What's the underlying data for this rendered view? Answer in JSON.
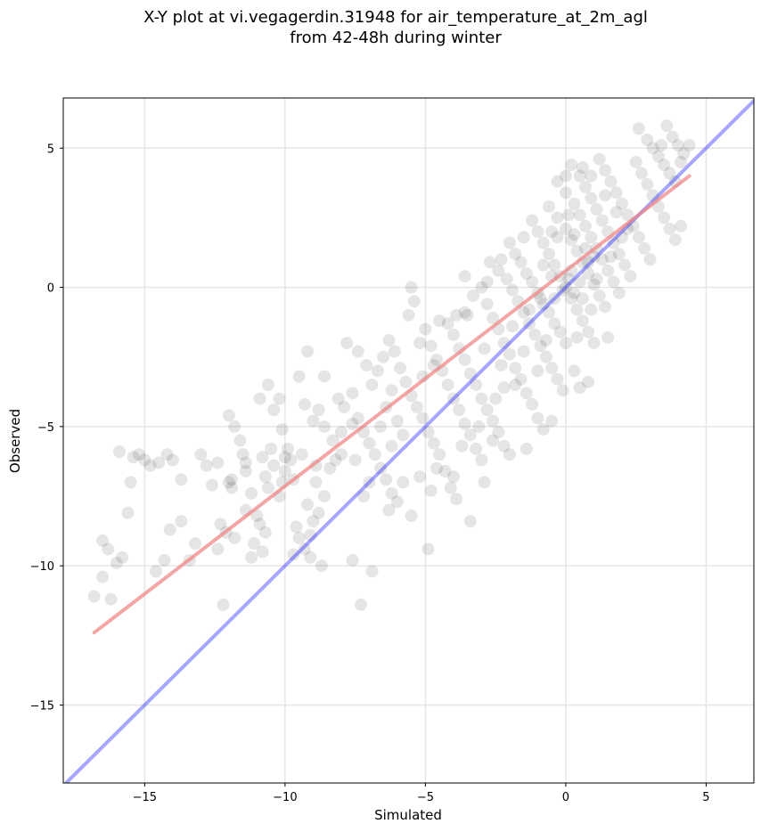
{
  "chart_data": {
    "type": "scatter",
    "title_line1": "X-Y plot at vi.vegagerdin.31948 for air_temperature_at_2m_agl",
    "title_line2": "from 42-48h during winter",
    "xlabel": "Simulated",
    "ylabel": "Observed",
    "xlim": [
      -17.9,
      6.7
    ],
    "ylim": [
      -17.8,
      6.8
    ],
    "xticks": [
      -15,
      -10,
      -5,
      0,
      5
    ],
    "yticks": [
      -15,
      -10,
      -5,
      0,
      5
    ],
    "xtick_labels": [
      "−15",
      "−10",
      "−5",
      "0",
      "5"
    ],
    "ytick_labels": [
      "−15",
      "−10",
      "−5",
      "0",
      "5"
    ],
    "grid": true,
    "point_color": "#000000",
    "point_alpha": 0.1,
    "identity_line": {
      "color": "#0000ff",
      "x": [
        -17.9,
        6.7
      ],
      "y": [
        -17.9,
        6.7
      ]
    },
    "fit_line": {
      "color": "#f08080",
      "x": [
        -16.8,
        4.4
      ],
      "y": [
        -12.4,
        4.0
      ]
    },
    "points": [
      [
        -16.8,
        -11.1
      ],
      [
        -16.5,
        -10.4
      ],
      [
        -16.2,
        -11.2
      ],
      [
        -16.5,
        -9.1
      ],
      [
        -16.3,
        -9.4
      ],
      [
        -16.0,
        -9.9
      ],
      [
        -15.8,
        -9.7
      ],
      [
        -15.9,
        -5.9
      ],
      [
        -15.5,
        -7.0
      ],
      [
        -15.6,
        -8.1
      ],
      [
        -15.4,
        -6.1
      ],
      [
        -15.2,
        -6.0
      ],
      [
        -15.0,
        -6.2
      ],
      [
        -14.8,
        -6.4
      ],
      [
        -14.5,
        -6.3
      ],
      [
        -14.2,
        -6.0
      ],
      [
        -14.0,
        -6.2
      ],
      [
        -14.6,
        -10.2
      ],
      [
        -14.3,
        -9.8
      ],
      [
        -14.1,
        -8.7
      ],
      [
        -13.7,
        -8.4
      ],
      [
        -13.7,
        -6.9
      ],
      [
        -13.4,
        -9.8
      ],
      [
        -13.2,
        -9.2
      ],
      [
        -13.0,
        -6.0
      ],
      [
        -12.8,
        -6.4
      ],
      [
        -12.6,
        -7.1
      ],
      [
        -12.4,
        -6.3
      ],
      [
        -12.3,
        -8.5
      ],
      [
        -12.1,
        -8.8
      ],
      [
        -12.0,
        -7.0
      ],
      [
        -11.9,
        -6.9
      ],
      [
        -11.9,
        -7.2
      ],
      [
        -12.0,
        -4.6
      ],
      [
        -11.8,
        -5.0
      ],
      [
        -11.6,
        -5.5
      ],
      [
        -11.5,
        -6.0
      ],
      [
        -11.4,
        -6.6
      ],
      [
        -11.2,
        -7.4
      ],
      [
        -11.4,
        -8.0
      ],
      [
        -11.0,
        -8.2
      ],
      [
        -10.9,
        -8.5
      ],
      [
        -10.7,
        -8.8
      ],
      [
        -11.1,
        -9.2
      ],
      [
        -11.2,
        -9.7
      ],
      [
        -10.8,
        -9.5
      ],
      [
        -12.2,
        -11.4
      ],
      [
        -12.4,
        -9.4
      ],
      [
        -11.8,
        -9.0
      ],
      [
        -10.8,
        -6.1
      ],
      [
        -10.7,
        -6.8
      ],
      [
        -10.5,
        -5.8
      ],
      [
        -10.4,
        -6.4
      ],
      [
        -10.2,
        -7.5
      ],
      [
        -10.1,
        -7.0
      ],
      [
        -10.0,
        -6.1
      ],
      [
        -9.9,
        -5.8
      ],
      [
        -9.8,
        -6.2
      ],
      [
        -10.0,
        -6.6
      ],
      [
        -10.2,
        -4.0
      ],
      [
        -10.4,
        -4.4
      ],
      [
        -10.1,
        -5.1
      ],
      [
        -9.6,
        -8.6
      ],
      [
        -9.5,
        -9.0
      ],
      [
        -9.7,
        -9.6
      ],
      [
        -9.3,
        -9.4
      ],
      [
        -9.1,
        -8.9
      ],
      [
        -9.0,
        -8.4
      ],
      [
        -8.8,
        -8.1
      ],
      [
        -8.6,
        -7.5
      ],
      [
        -8.9,
        -7.0
      ],
      [
        -9.2,
        -7.8
      ],
      [
        -8.4,
        -6.5
      ],
      [
        -8.2,
        -6.2
      ],
      [
        -8.0,
        -6.0
      ],
      [
        -8.3,
        -5.5
      ],
      [
        -8.6,
        -5.0
      ],
      [
        -8.8,
        -4.4
      ],
      [
        -9.0,
        -4.8
      ],
      [
        -9.3,
        -4.2
      ],
      [
        -9.5,
        -3.2
      ],
      [
        -9.2,
        -2.3
      ],
      [
        -8.6,
        -3.2
      ],
      [
        -8.1,
        -4.0
      ],
      [
        -7.9,
        -4.3
      ],
      [
        -7.6,
        -3.8
      ],
      [
        -7.4,
        -4.7
      ],
      [
        -7.2,
        -5.2
      ],
      [
        -7.0,
        -5.6
      ],
      [
        -6.8,
        -6.0
      ],
      [
        -6.6,
        -6.5
      ],
      [
        -6.4,
        -6.9
      ],
      [
        -6.2,
        -7.4
      ],
      [
        -6.0,
        -7.7
      ],
      [
        -5.8,
        -7.0
      ],
      [
        -7.8,
        -2.0
      ],
      [
        -7.4,
        -2.3
      ],
      [
        -7.1,
        -2.8
      ],
      [
        -6.9,
        -3.5
      ],
      [
        -6.7,
        -3.0
      ],
      [
        -6.5,
        -2.5
      ],
      [
        -6.3,
        -1.9
      ],
      [
        -6.1,
        -2.3
      ],
      [
        -5.9,
        -2.9
      ],
      [
        -5.7,
        -3.4
      ],
      [
        -5.5,
        -3.9
      ],
      [
        -5.3,
        -4.3
      ],
      [
        -5.1,
        -4.7
      ],
      [
        -4.9,
        -5.2
      ],
      [
        -4.7,
        -5.6
      ],
      [
        -4.5,
        -6.0
      ],
      [
        -4.3,
        -6.6
      ],
      [
        -4.1,
        -7.2
      ],
      [
        -3.9,
        -7.6
      ],
      [
        -5.6,
        -1.0
      ],
      [
        -5.4,
        -0.5
      ],
      [
        -5.5,
        0.0
      ],
      [
        -5.0,
        -1.5
      ],
      [
        -4.8,
        -2.1
      ],
      [
        -4.6,
        -2.6
      ],
      [
        -4.4,
        -3.0
      ],
      [
        -4.2,
        -3.5
      ],
      [
        -4.0,
        -4.0
      ],
      [
        -3.8,
        -4.4
      ],
      [
        -3.6,
        -4.9
      ],
      [
        -3.4,
        -5.3
      ],
      [
        -3.2,
        -5.8
      ],
      [
        -3.0,
        -6.2
      ],
      [
        -4.2,
        -1.3
      ],
      [
        -4.0,
        -1.7
      ],
      [
        -3.8,
        -2.2
      ],
      [
        -3.6,
        -2.6
      ],
      [
        -3.4,
        -3.1
      ],
      [
        -3.2,
        -3.5
      ],
      [
        -3.0,
        -4.0
      ],
      [
        -2.8,
        -4.4
      ],
      [
        -2.6,
        -4.8
      ],
      [
        -2.4,
        -5.2
      ],
      [
        -2.2,
        -5.7
      ],
      [
        -2.0,
        -6.0
      ],
      [
        -3.5,
        -1.0
      ],
      [
        -3.3,
        -0.3
      ],
      [
        -3.0,
        0.0
      ],
      [
        -2.8,
        -0.6
      ],
      [
        -2.6,
        -1.1
      ],
      [
        -2.4,
        -1.5
      ],
      [
        -2.2,
        -2.0
      ],
      [
        -2.0,
        -2.4
      ],
      [
        -1.8,
        -2.9
      ],
      [
        -1.6,
        -3.3
      ],
      [
        -1.4,
        -3.8
      ],
      [
        -1.2,
        -4.2
      ],
      [
        -1.0,
        -4.7
      ],
      [
        -0.8,
        -5.1
      ],
      [
        -2.7,
        0.9
      ],
      [
        -2.4,
        0.6
      ],
      [
        -2.1,
        0.3
      ],
      [
        -1.9,
        -0.1
      ],
      [
        -1.7,
        -0.5
      ],
      [
        -1.5,
        -0.9
      ],
      [
        -1.3,
        -1.3
      ],
      [
        -1.1,
        -1.7
      ],
      [
        -0.9,
        -2.1
      ],
      [
        -0.7,
        -2.5
      ],
      [
        -0.5,
        -2.9
      ],
      [
        -0.3,
        -3.3
      ],
      [
        -0.1,
        -3.7
      ],
      [
        0.3,
        -3.0
      ],
      [
        0.5,
        -3.6
      ],
      [
        0.4,
        -1.8
      ],
      [
        -2.0,
        1.6
      ],
      [
        -1.8,
        1.2
      ],
      [
        -1.6,
        0.9
      ],
      [
        -1.4,
        0.5
      ],
      [
        -1.2,
        0.2
      ],
      [
        -1.0,
        -0.2
      ],
      [
        -0.8,
        -0.6
      ],
      [
        -0.6,
        -0.9
      ],
      [
        -0.4,
        -1.3
      ],
      [
        -0.2,
        -1.6
      ],
      [
        0.0,
        -2.0
      ],
      [
        -1.2,
        2.4
      ],
      [
        -1.0,
        2.0
      ],
      [
        -0.8,
        1.6
      ],
      [
        -0.6,
        1.2
      ],
      [
        -0.4,
        0.8
      ],
      [
        -0.2,
        0.4
      ],
      [
        0.0,
        0.0
      ],
      [
        0.2,
        -0.4
      ],
      [
        0.4,
        -0.8
      ],
      [
        0.6,
        -1.2
      ],
      [
        0.8,
        -1.6
      ],
      [
        1.0,
        -2.0
      ],
      [
        -0.6,
        2.9
      ],
      [
        -0.3,
        2.5
      ],
      [
        0.0,
        2.1
      ],
      [
        0.2,
        1.7
      ],
      [
        0.4,
        1.3
      ],
      [
        0.6,
        0.9
      ],
      [
        0.8,
        0.5
      ],
      [
        1.0,
        0.1
      ],
      [
        1.2,
        -0.3
      ],
      [
        1.4,
        -0.7
      ],
      [
        1.5,
        -1.8
      ],
      [
        -0.3,
        3.8
      ],
      [
        0.0,
        3.4
      ],
      [
        0.3,
        3.0
      ],
      [
        0.5,
        2.6
      ],
      [
        0.7,
        2.2
      ],
      [
        0.9,
        1.8
      ],
      [
        1.1,
        1.4
      ],
      [
        1.3,
        1.0
      ],
      [
        1.5,
        0.6
      ],
      [
        1.7,
        0.2
      ],
      [
        1.9,
        -0.2
      ],
      [
        0.2,
        4.4
      ],
      [
        0.5,
        4.0
      ],
      [
        0.7,
        3.6
      ],
      [
        0.9,
        3.2
      ],
      [
        1.1,
        2.8
      ],
      [
        1.3,
        2.4
      ],
      [
        1.5,
        2.0
      ],
      [
        1.7,
        1.6
      ],
      [
        1.9,
        1.2
      ],
      [
        2.1,
        0.8
      ],
      [
        2.3,
        0.4
      ],
      [
        1.2,
        4.6
      ],
      [
        1.4,
        4.2
      ],
      [
        1.6,
        3.8
      ],
      [
        1.8,
        3.4
      ],
      [
        2.0,
        3.0
      ],
      [
        2.2,
        2.6
      ],
      [
        2.4,
        2.2
      ],
      [
        2.6,
        1.8
      ],
      [
        2.8,
        1.4
      ],
      [
        3.0,
        1.0
      ],
      [
        2.5,
        4.5
      ],
      [
        2.7,
        4.1
      ],
      [
        2.9,
        3.7
      ],
      [
        3.1,
        3.3
      ],
      [
        3.3,
        2.9
      ],
      [
        3.5,
        2.5
      ],
      [
        3.7,
        2.1
      ],
      [
        3.9,
        1.7
      ],
      [
        4.1,
        2.2
      ],
      [
        2.6,
        5.7
      ],
      [
        2.9,
        5.3
      ],
      [
        3.1,
        5.0
      ],
      [
        3.3,
        4.7
      ],
      [
        3.5,
        4.4
      ],
      [
        3.7,
        4.1
      ],
      [
        3.9,
        3.8
      ],
      [
        4.1,
        4.5
      ],
      [
        3.6,
        5.8
      ],
      [
        3.8,
        5.4
      ],
      [
        4.0,
        5.1
      ],
      [
        4.4,
        5.1
      ],
      [
        4.2,
        4.8
      ],
      [
        3.4,
        5.1
      ],
      [
        0.5,
        0.2
      ],
      [
        0.3,
        -0.2
      ],
      [
        0.1,
        0.3
      ],
      [
        -0.1,
        -0.1
      ],
      [
        0.6,
        -0.4
      ],
      [
        0.2,
        0.6
      ],
      [
        -0.5,
        0.4
      ],
      [
        0.8,
        0.9
      ],
      [
        -0.9,
        -0.4
      ],
      [
        1.0,
        1.1
      ],
      [
        -0.3,
        1.8
      ],
      [
        0.3,
        1.9
      ],
      [
        0.1,
        2.6
      ],
      [
        -7.3,
        -11.4
      ],
      [
        -4.9,
        -9.4
      ],
      [
        -3.4,
        -8.4
      ],
      [
        -6.9,
        -10.2
      ],
      [
        -7.6,
        -9.8
      ],
      [
        -8.7,
        -10.0
      ],
      [
        -9.1,
        -9.7
      ],
      [
        -5.5,
        -8.2
      ],
      [
        -4.6,
        -6.5
      ],
      [
        -3.1,
        -5.0
      ],
      [
        -2.5,
        -4.0
      ],
      [
        -1.8,
        -3.5
      ],
      [
        -0.5,
        -4.8
      ],
      [
        0.8,
        -3.4
      ],
      [
        -1.4,
        -5.8
      ],
      [
        -2.9,
        -7.0
      ],
      [
        -6.2,
        -3.7
      ],
      [
        -6.4,
        -4.3
      ],
      [
        -6.0,
        -4.8
      ],
      [
        -5.8,
        -5.3
      ],
      [
        -6.6,
        -5.0
      ],
      [
        -6.2,
        -5.7
      ],
      [
        -7.6,
        -4.9
      ],
      [
        -8.0,
        -5.2
      ],
      [
        -10.6,
        -3.5
      ],
      [
        -10.9,
        -4.0
      ],
      [
        -11.4,
        -6.3
      ],
      [
        -10.6,
        -7.2
      ],
      [
        -9.7,
        -6.9
      ],
      [
        -9.4,
        -6.0
      ],
      [
        -8.9,
        -6.4
      ],
      [
        -7.5,
        -6.2
      ],
      [
        -7.0,
        -7.0
      ],
      [
        -7.2,
        -7.5
      ],
      [
        -6.3,
        -8.0
      ],
      [
        -5.2,
        -6.8
      ],
      [
        -4.8,
        -7.3
      ],
      [
        -4.0,
        -6.8
      ],
      [
        -3.7,
        -5.7
      ],
      [
        -2.6,
        -5.5
      ],
      [
        -3.6,
        -0.9
      ],
      [
        -4.7,
        -2.8
      ],
      [
        -5.1,
        -3.2
      ],
      [
        -5.2,
        -2.0
      ],
      [
        -4.5,
        -1.2
      ],
      [
        -3.9,
        -1.0
      ],
      [
        -2.9,
        -2.2
      ],
      [
        -2.3,
        -2.8
      ],
      [
        -1.9,
        -1.4
      ],
      [
        -1.3,
        -0.8
      ],
      [
        -0.7,
        -1.9
      ],
      [
        -1.5,
        -2.3
      ],
      [
        -1.0,
        -3.0
      ],
      [
        -2.2,
        -3.6
      ],
      [
        0.7,
        1.4
      ],
      [
        1.1,
        0.3
      ],
      [
        1.6,
        1.1
      ],
      [
        2.0,
        1.8
      ],
      [
        2.2,
        2.1
      ],
      [
        1.8,
        2.7
      ],
      [
        1.4,
        3.3
      ],
      [
        0.9,
        4.0
      ],
      [
        0.6,
        4.3
      ],
      [
        0.0,
        4.0
      ],
      [
        -0.5,
        2.0
      ],
      [
        -0.8,
        0.8
      ],
      [
        -1.5,
        1.8
      ],
      [
        -2.3,
        1.0
      ],
      [
        -2.8,
        0.2
      ],
      [
        -3.6,
        0.4
      ],
      [
        -0.4,
        -0.4
      ],
      [
        0.9,
        -0.8
      ]
    ]
  }
}
